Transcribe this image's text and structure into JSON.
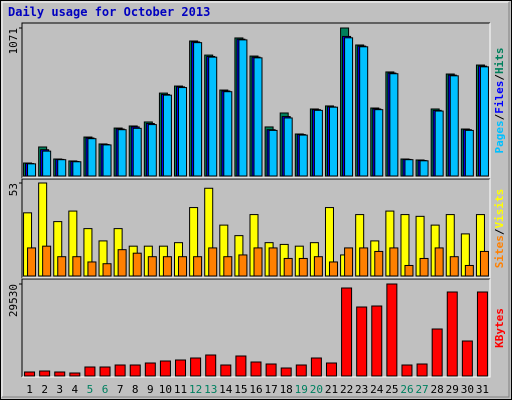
{
  "chart_data": [
    {
      "type": "bar",
      "title": "Daily usage for October 2013",
      "legend_separator": "/",
      "ylim": [
        0,
        1071
      ],
      "yticks": [
        1071
      ],
      "series": [
        {
          "name": "Pages",
          "color": "#00c0ff",
          "values": [
            88,
            180,
            118,
            103,
            270,
            225,
            335,
            345,
            372,
            585,
            640,
            965,
            860,
            610,
            985,
            855,
            330,
            420,
            296,
            475,
            498,
            1000,
            935,
            480,
            740,
            118,
            110,
            470,
            725,
            330,
            790
          ]
        },
        {
          "name": "Files",
          "color": "#0000ff",
          "values": [
            90,
            190,
            120,
            105,
            275,
            228,
            340,
            355,
            380,
            590,
            645,
            970,
            865,
            615,
            990,
            860,
            335,
            430,
            300,
            480,
            500,
            1010,
            940,
            485,
            745,
            120,
            112,
            475,
            730,
            335,
            795
          ]
        },
        {
          "name": "Hits",
          "color": "#00805c",
          "values": [
            94,
            210,
            123,
            109,
            282,
            232,
            347,
            362,
            391,
            600,
            651,
            977,
            875,
            622,
            999,
            868,
            355,
            456,
            304,
            485,
            507,
            1071,
            948,
            492,
            753,
            123,
            116,
            485,
            738,
            340,
            803
          ]
        }
      ]
    },
    {
      "type": "bar",
      "legend_separator": "/",
      "ylim": [
        0,
        53
      ],
      "yticks": [
        53
      ],
      "series": [
        {
          "name": "Sites",
          "color": "#ff8000",
          "values": [
            16,
            17,
            11,
            11,
            8,
            7,
            15,
            13,
            11,
            11,
            11,
            11,
            16,
            11,
            12,
            16,
            16,
            10,
            10,
            11,
            8,
            16,
            16,
            14,
            16,
            6,
            10,
            16,
            11,
            6,
            14
          ]
        },
        {
          "name": "Visits",
          "color": "#ffff00",
          "values": [
            36,
            53,
            31,
            37,
            27,
            20,
            27,
            17,
            17,
            17,
            19,
            39,
            50,
            29,
            23,
            35,
            19,
            18,
            17,
            19,
            39,
            12,
            35,
            20,
            37,
            35,
            34,
            29,
            35,
            24,
            35
          ]
        }
      ]
    },
    {
      "type": "bar",
      "ylim": [
        0,
        29530
      ],
      "yticks": [
        29530
      ],
      "categories": [
        "1",
        "2",
        "3",
        "4",
        "5",
        "6",
        "7",
        "8",
        "9",
        "10",
        "11",
        "12",
        "13",
        "14",
        "15",
        "16",
        "17",
        "18",
        "19",
        "20",
        "21",
        "22",
        "23",
        "24",
        "25",
        "26",
        "27",
        "28",
        "29",
        "30",
        "31"
      ],
      "category_colors": [
        "#000000",
        "#000000",
        "#000000",
        "#000000",
        "#008060",
        "#008060",
        "#000000",
        "#000000",
        "#000000",
        "#000000",
        "#000000",
        "#008060",
        "#008060",
        "#000000",
        "#000000",
        "#000000",
        "#000000",
        "#000000",
        "#008060",
        "#008060",
        "#000000",
        "#000000",
        "#000000",
        "#000000",
        "#000000",
        "#008060",
        "#008060",
        "#000000",
        "#000000",
        "#000000",
        "#000000"
      ],
      "series": [
        {
          "name": "KBytes",
          "color": "#ff0000",
          "values": [
            1284,
            1605,
            1284,
            963,
            2889,
            2889,
            3531,
            3531,
            4173,
            4815,
            5136,
            5778,
            6741,
            3531,
            6420,
            4494,
            3852,
            2568,
            3531,
            5778,
            4173,
            28246,
            22146,
            22467,
            29530,
            3531,
            3852,
            15086,
            26962,
            11235,
            26962
          ]
        }
      ]
    }
  ]
}
